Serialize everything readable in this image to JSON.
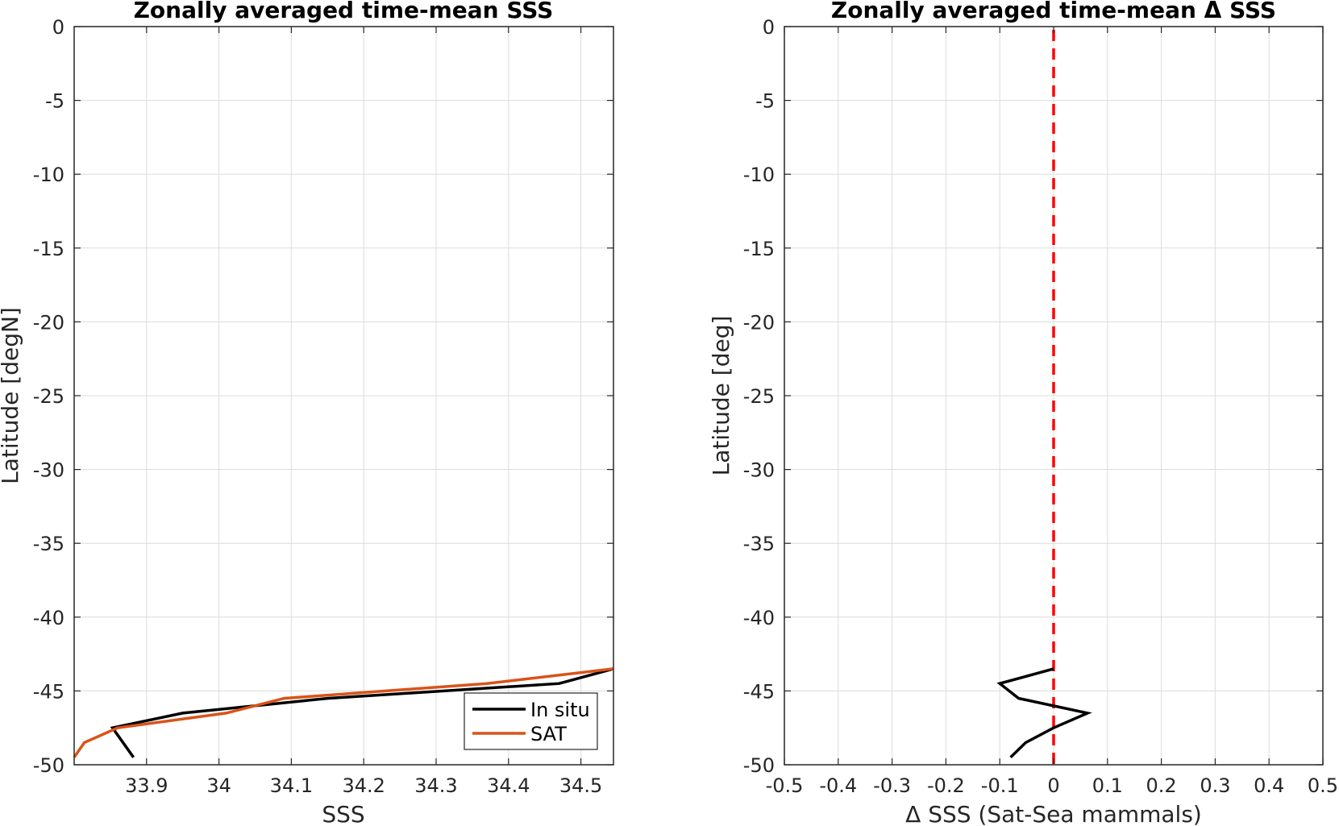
{
  "chart_data": [
    {
      "type": "line",
      "title": "Zonally averaged time-mean SSS",
      "xlabel": "SSS",
      "ylabel": "Latitude [degN]",
      "xlim": [
        33.8,
        34.545
      ],
      "ylim": [
        -50,
        0
      ],
      "xticks": [
        33.9,
        34,
        34.1,
        34.2,
        34.3,
        34.4,
        34.5
      ],
      "xtick_labels": [
        "33.9",
        "34",
        "34.1",
        "34.2",
        "34.3",
        "34.4",
        "34.5"
      ],
      "yticks": [
        0,
        -5,
        -10,
        -15,
        -20,
        -25,
        -30,
        -35,
        -40,
        -45,
        -50
      ],
      "ytick_labels": [
        "0",
        "-5",
        "-10",
        "-15",
        "-20",
        "-25",
        "-30",
        "-35",
        "-40",
        "-45",
        "-50"
      ],
      "grid": true,
      "legend": "bottom-right",
      "series": [
        {
          "name": "In situ",
          "color": "#000000",
          "x": [
            34.545,
            34.47,
            34.15,
            33.95,
            33.853,
            33.882
          ],
          "y": [
            -43.5,
            -44.5,
            -45.5,
            -46.5,
            -47.5,
            -49.5
          ]
        },
        {
          "name": "SAT",
          "color": "#D95319",
          "x": [
            34.545,
            34.37,
            34.09,
            34.01,
            33.86,
            33.814,
            33.8
          ],
          "y": [
            -43.5,
            -44.5,
            -45.5,
            -46.5,
            -47.5,
            -48.5,
            -49.5
          ]
        }
      ]
    },
    {
      "type": "line",
      "title": "Zonally averaged time-mean Δ SSS",
      "xlabel": "Δ SSS (Sat-Sea mammals)",
      "ylabel": "Latitude [deg]",
      "xlim": [
        -0.5,
        0.5
      ],
      "ylim": [
        -50,
        0
      ],
      "xticks": [
        -0.5,
        -0.4,
        -0.3,
        -0.2,
        -0.1,
        0,
        0.1,
        0.2,
        0.3,
        0.4,
        0.5
      ],
      "xtick_labels": [
        "-0.5",
        "-0.4",
        "-0.3",
        "-0.2",
        "-0.1",
        "0",
        "0.1",
        "0.2",
        "0.3",
        "0.4",
        "0.5"
      ],
      "yticks": [
        0,
        -5,
        -10,
        -15,
        -20,
        -25,
        -30,
        -35,
        -40,
        -45,
        -50
      ],
      "ytick_labels": [
        "0",
        "-5",
        "-10",
        "-15",
        "-20",
        "-25",
        "-30",
        "-35",
        "-40",
        "-45",
        "-50"
      ],
      "grid": true,
      "series": [
        {
          "color": "#000000",
          "x": [
            0,
            -0.1,
            -0.065,
            0.063,
            0,
            -0.052,
            -0.08
          ],
          "y": [
            -43.5,
            -44.5,
            -45.5,
            -46.5,
            -47.5,
            -48.5,
            -49.5
          ]
        }
      ],
      "reference_line": {
        "x": 0,
        "color": "#FF0000",
        "style": "dashed"
      }
    }
  ]
}
